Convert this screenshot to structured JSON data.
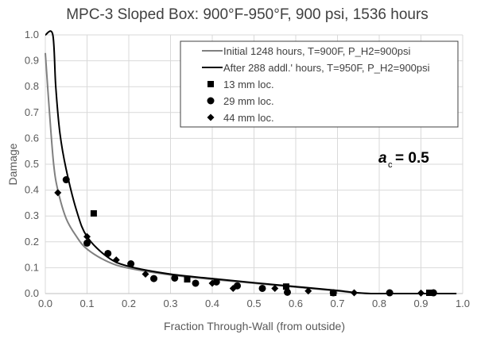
{
  "chart_data": {
    "type": "scatter",
    "title": "MPC-3 Sloped Box: 900°F-950°F, 900 psi, 1536 hours",
    "xlabel": "Fraction Through-Wall (from outside)",
    "ylabel": "Damage",
    "xlim": [
      0,
      1.0
    ],
    "ylim": [
      0,
      1.0
    ],
    "xticks": [
      "0.0",
      "0.1",
      "0.2",
      "0.3",
      "0.4",
      "0.5",
      "0.6",
      "0.7",
      "0.8",
      "0.9",
      "1.0"
    ],
    "yticks": [
      "0.0",
      "0.1",
      "0.2",
      "0.3",
      "0.4",
      "0.5",
      "0.6",
      "0.7",
      "0.8",
      "0.9",
      "1.0"
    ],
    "grid": true,
    "legend_position": "top-right",
    "annotation": {
      "symbol": "a",
      "subscript": "c",
      "text": "= 0.5"
    },
    "lines": [
      {
        "name": "Initial 1248 hours, T=900F, P_H2=900psi",
        "color": "#808080",
        "x": [
          0.0,
          0.01,
          0.02,
          0.03,
          0.05,
          0.075,
          0.1,
          0.15,
          0.2,
          0.3,
          0.4,
          0.5,
          0.6,
          0.7,
          0.78,
          0.985
        ],
        "y": [
          0.93,
          0.7,
          0.5,
          0.4,
          0.29,
          0.22,
          0.172,
          0.123,
          0.098,
          0.072,
          0.055,
          0.04,
          0.025,
          0.01,
          0.0,
          0.0
        ]
      },
      {
        "name": "After 288 addl.' hours, T=950F, P_H2=900psi",
        "color": "#000000",
        "x": [
          0.0,
          0.018,
          0.025,
          0.035,
          0.05,
          0.075,
          0.1,
          0.15,
          0.2,
          0.3,
          0.4,
          0.5,
          0.6,
          0.7,
          0.78,
          0.985
        ],
        "y": [
          1.0,
          1.0,
          0.8,
          0.62,
          0.48,
          0.32,
          0.22,
          0.14,
          0.105,
          0.075,
          0.058,
          0.042,
          0.027,
          0.012,
          0.0,
          0.0
        ]
      }
    ],
    "series": [
      {
        "name": "13 mm loc.",
        "marker": "square",
        "x": [
          0.116,
          0.34,
          0.577,
          0.69,
          0.92
        ],
        "y": [
          0.31,
          0.055,
          0.027,
          0.003,
          0.003
        ]
      },
      {
        "name": "29 mm loc.",
        "marker": "circle",
        "x": [
          0.05,
          0.1,
          0.15,
          0.205,
          0.26,
          0.31,
          0.36,
          0.41,
          0.46,
          0.52,
          0.58,
          0.69,
          0.825,
          0.93
        ],
        "y": [
          0.44,
          0.195,
          0.155,
          0.115,
          0.058,
          0.06,
          0.04,
          0.045,
          0.03,
          0.02,
          0.005,
          0.003,
          0.003,
          0.003
        ]
      },
      {
        "name": "44 mm loc.",
        "marker": "diamond",
        "x": [
          0.03,
          0.1,
          0.17,
          0.24,
          0.4,
          0.45,
          0.55,
          0.63,
          0.74,
          0.9
        ],
        "y": [
          0.39,
          0.22,
          0.13,
          0.075,
          0.04,
          0.02,
          0.02,
          0.01,
          0.003,
          0.002
        ]
      }
    ]
  }
}
